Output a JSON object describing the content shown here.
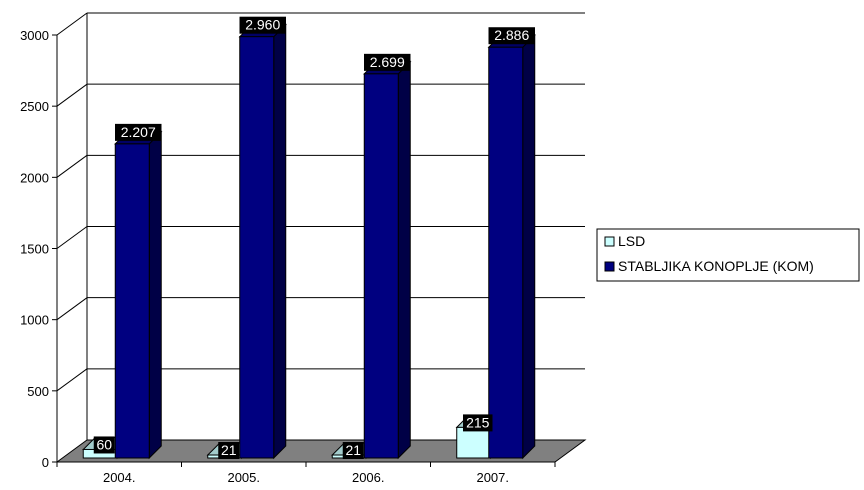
{
  "chart_data": {
    "type": "bar",
    "categories": [
      "2004.",
      "2005.",
      "2006.",
      "2007."
    ],
    "series": [
      {
        "name": "LSD",
        "values": [
          60,
          21,
          21,
          215
        ],
        "labels": [
          "60",
          "21",
          "21",
          "215"
        ],
        "color": "#ccffff"
      },
      {
        "name": "STABLJIKA KONOPLJE (KOM)",
        "values": [
          2207,
          2960,
          2699,
          2886
        ],
        "labels": [
          "2.207",
          "2.960",
          "2.699",
          "2.886"
        ],
        "color": "#000080"
      }
    ],
    "yticks": [
      "0",
      "500",
      "1000",
      "1500",
      "2000",
      "2500",
      "3000"
    ],
    "ylim": [
      0,
      3000
    ],
    "grid": true,
    "legend_position": "right",
    "floor_color": "#808080",
    "title": "",
    "xlabel": "",
    "ylabel": ""
  }
}
